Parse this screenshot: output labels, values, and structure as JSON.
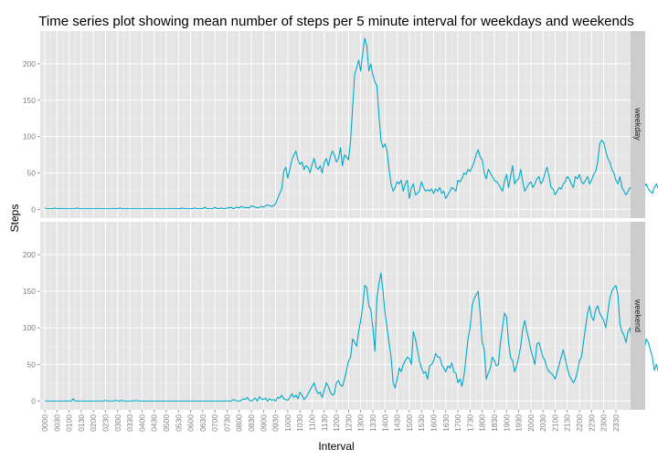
{
  "chart_data": {
    "type": "line",
    "title": "Time series plot showing mean number of steps per 5 minute interval for weekdays and weekends",
    "xlabel": "Interval",
    "ylabel": "Steps",
    "ylim": [
      -12,
      245
    ],
    "yticks": [
      0,
      50,
      100,
      150,
      200
    ],
    "xticks": [
      "0000",
      "0030",
      "0100",
      "0130",
      "0200",
      "0230",
      "0300",
      "0330",
      "0400",
      "0430",
      "0500",
      "0530",
      "0600",
      "0630",
      "0700",
      "0730",
      "0800",
      "0830",
      "0900",
      "0930",
      "1000",
      "1030",
      "1100",
      "1130",
      "1200",
      "1230",
      "1300",
      "1330",
      "1400",
      "1430",
      "1500",
      "1530",
      "1600",
      "1630",
      "1700",
      "1730",
      "1800",
      "1830",
      "1900",
      "1930",
      "2000",
      "2030",
      "2100",
      "2130",
      "2200",
      "2230",
      "2300",
      "2330"
    ],
    "x_unit": "minutes since 00:00, one point per 5-minute interval",
    "series_color": "#00a9c9",
    "panels": [
      {
        "strip": "weekday",
        "values": [
          2,
          1,
          1,
          1,
          1,
          2,
          1,
          1,
          1,
          1,
          1,
          1,
          1,
          1,
          1,
          1,
          2,
          1,
          1,
          1,
          1,
          1,
          1,
          1,
          1,
          1,
          1,
          1,
          1,
          1,
          1,
          1,
          1,
          1,
          1,
          1,
          1,
          2,
          1,
          1,
          1,
          1,
          1,
          1,
          1,
          1,
          1,
          1,
          1,
          1,
          1,
          1,
          1,
          1,
          1,
          1,
          1,
          1,
          1,
          1,
          1,
          1,
          1,
          1,
          1,
          1,
          1,
          1,
          2,
          1,
          1,
          1,
          1,
          1,
          2,
          1,
          1,
          1,
          1,
          3,
          1,
          1,
          1,
          1,
          3,
          1,
          1,
          2,
          1,
          1,
          2,
          2,
          3,
          1,
          2,
          3,
          2,
          4,
          3,
          2,
          3,
          2,
          5,
          4,
          3,
          2,
          3,
          4,
          3,
          5,
          6,
          5,
          4,
          5,
          8,
          15,
          22,
          28,
          52,
          58,
          43,
          55,
          68,
          75,
          80,
          68,
          62,
          65,
          55,
          60,
          58,
          50,
          62,
          70,
          58,
          55,
          60,
          50,
          65,
          70,
          60,
          72,
          80,
          75,
          65,
          70,
          85,
          60,
          75,
          72,
          68,
          95,
          140,
          185,
          195,
          205,
          190,
          215,
          235,
          225,
          190,
          200,
          185,
          175,
          170,
          130,
          95,
          85,
          90,
          80,
          55,
          35,
          25,
          30,
          38,
          35,
          40,
          25,
          35,
          40,
          15,
          30,
          35,
          20,
          22,
          25,
          38,
          30,
          25,
          27,
          25,
          28,
          22,
          28,
          25,
          30,
          22,
          25,
          15,
          20,
          25,
          30,
          28,
          25,
          40,
          38,
          42,
          50,
          48,
          55,
          52,
          58,
          65,
          75,
          82,
          72,
          68,
          50,
          42,
          55,
          50,
          45,
          40,
          38,
          35,
          30,
          25,
          38,
          48,
          30,
          45,
          60,
          35,
          40,
          42,
          55,
          38,
          25,
          30,
          35,
          38,
          30,
          35,
          42,
          45,
          35,
          40,
          50,
          58,
          45,
          30,
          28,
          20,
          25,
          30,
          28,
          35,
          38,
          45,
          42,
          35,
          30,
          45,
          42,
          48,
          38,
          35,
          40,
          45,
          35,
          40,
          48,
          52,
          65,
          90,
          95,
          92,
          80,
          70,
          65,
          55,
          50,
          40,
          35,
          45,
          30,
          25,
          20,
          25,
          30,
          28,
          22,
          25,
          30,
          38,
          42,
          30,
          35,
          28,
          25,
          22,
          30,
          35,
          28,
          32,
          40,
          55,
          70,
          80,
          65,
          45,
          25,
          50,
          75,
          65,
          80,
          92,
          100,
          95,
          80,
          70,
          85,
          75,
          90,
          100,
          105,
          115,
          110,
          95,
          90,
          85,
          80,
          70,
          60,
          50,
          40,
          38,
          32,
          25,
          45,
          35,
          25,
          20,
          18,
          35,
          40,
          30,
          45,
          35,
          25,
          20,
          15,
          20,
          15,
          5,
          10,
          5,
          12,
          8,
          5,
          8,
          10,
          15,
          18,
          10,
          12,
          15,
          20,
          25,
          18,
          22,
          15,
          12,
          10,
          18,
          25,
          20,
          15,
          10,
          8,
          12,
          15,
          10,
          8,
          5,
          8,
          12,
          10,
          8,
          5,
          6,
          5,
          3,
          5,
          8,
          10,
          12,
          10,
          8,
          12,
          15,
          10,
          8,
          12,
          14,
          8,
          5,
          2,
          3,
          4,
          5,
          2,
          3,
          2,
          1,
          2,
          1,
          2,
          3,
          2,
          3,
          2,
          1,
          1,
          2,
          1,
          2,
          1,
          2,
          1,
          2,
          2
        ]
      },
      {
        "strip": "weekend",
        "values": [
          0,
          0,
          0,
          0,
          0,
          0,
          0,
          0,
          0,
          0,
          0,
          0,
          0,
          0,
          3,
          0,
          0,
          0,
          0,
          0,
          0,
          0,
          0,
          0,
          0,
          0,
          0,
          0,
          0,
          0,
          1,
          0,
          0,
          0,
          0,
          1,
          0,
          0,
          1,
          0,
          0,
          0,
          0,
          0,
          0,
          1,
          0,
          0,
          0,
          0,
          0,
          0,
          0,
          0,
          0,
          0,
          0,
          0,
          0,
          0,
          0,
          0,
          0,
          0,
          0,
          0,
          0,
          0,
          0,
          0,
          0,
          0,
          0,
          0,
          0,
          0,
          0,
          0,
          0,
          0,
          0,
          0,
          0,
          0,
          0,
          0,
          0,
          0,
          0,
          0,
          0,
          0,
          0,
          2,
          1,
          0,
          0,
          1,
          3,
          2,
          5,
          1,
          0,
          2,
          4,
          0,
          6,
          3,
          2,
          4,
          0,
          3,
          1,
          2,
          0,
          5,
          4,
          8,
          3,
          2,
          1,
          5,
          10,
          5,
          8,
          3,
          12,
          8,
          2,
          5,
          10,
          15,
          20,
          25,
          15,
          10,
          12,
          5,
          15,
          25,
          20,
          12,
          8,
          10,
          25,
          28,
          22,
          20,
          30,
          42,
          55,
          60,
          85,
          80,
          75,
          95,
          110,
          130,
          158,
          155,
          130,
          125,
          100,
          68,
          140,
          160,
          175,
          150,
          120,
          100,
          80,
          60,
          25,
          18,
          30,
          45,
          40,
          50,
          55,
          60,
          58,
          50,
          95,
          85,
          70,
          55,
          45,
          38,
          40,
          30,
          48,
          50,
          55,
          65,
          60,
          60,
          50,
          45,
          40,
          48,
          45,
          52,
          40,
          38,
          25,
          30,
          20,
          35,
          60,
          85,
          100,
          130,
          140,
          145,
          150,
          120,
          80,
          70,
          30,
          38,
          45,
          60,
          55,
          48,
          50,
          80,
          100,
          120,
          115,
          80,
          60,
          55,
          40,
          48,
          60,
          75,
          98,
          110,
          95,
          85,
          70,
          60,
          50,
          78,
          80,
          70,
          60,
          55,
          45,
          40,
          38,
          35,
          30,
          40,
          50,
          60,
          70,
          58,
          45,
          35,
          30,
          25,
          30,
          40,
          55,
          60,
          80,
          100,
          120,
          130,
          115,
          110,
          125,
          130,
          120,
          115,
          110,
          100,
          120,
          140,
          150,
          155,
          158,
          145,
          105,
          95,
          90,
          80,
          95,
          100,
          80,
          75,
          70,
          80,
          100,
          95,
          70,
          85,
          80,
          70,
          60,
          42,
          50,
          40,
          48,
          70,
          80,
          85,
          95,
          100,
          98,
          80,
          60,
          50,
          40,
          45,
          40,
          30,
          38,
          45,
          50,
          42,
          55,
          65,
          75,
          70,
          60,
          45,
          30,
          50,
          42,
          28,
          25,
          22,
          20,
          18,
          22,
          25,
          35,
          40,
          48,
          55,
          62,
          75,
          100,
          95,
          90,
          85,
          80,
          75,
          70,
          65,
          75,
          70,
          55,
          45,
          40,
          35,
          25,
          20,
          10,
          25,
          18,
          12,
          8,
          15,
          20,
          15,
          10,
          12,
          8,
          5,
          3,
          0,
          0,
          2,
          4,
          2,
          0,
          3,
          0,
          0,
          1,
          0,
          0,
          2,
          0,
          0,
          0,
          0,
          1,
          0,
          0,
          0,
          5,
          0,
          0,
          0,
          0,
          2,
          0,
          0,
          3,
          6,
          0,
          0,
          5,
          8,
          2,
          5,
          15,
          12,
          5,
          3,
          0,
          0
        ]
      }
    ],
    "grid": true
  }
}
